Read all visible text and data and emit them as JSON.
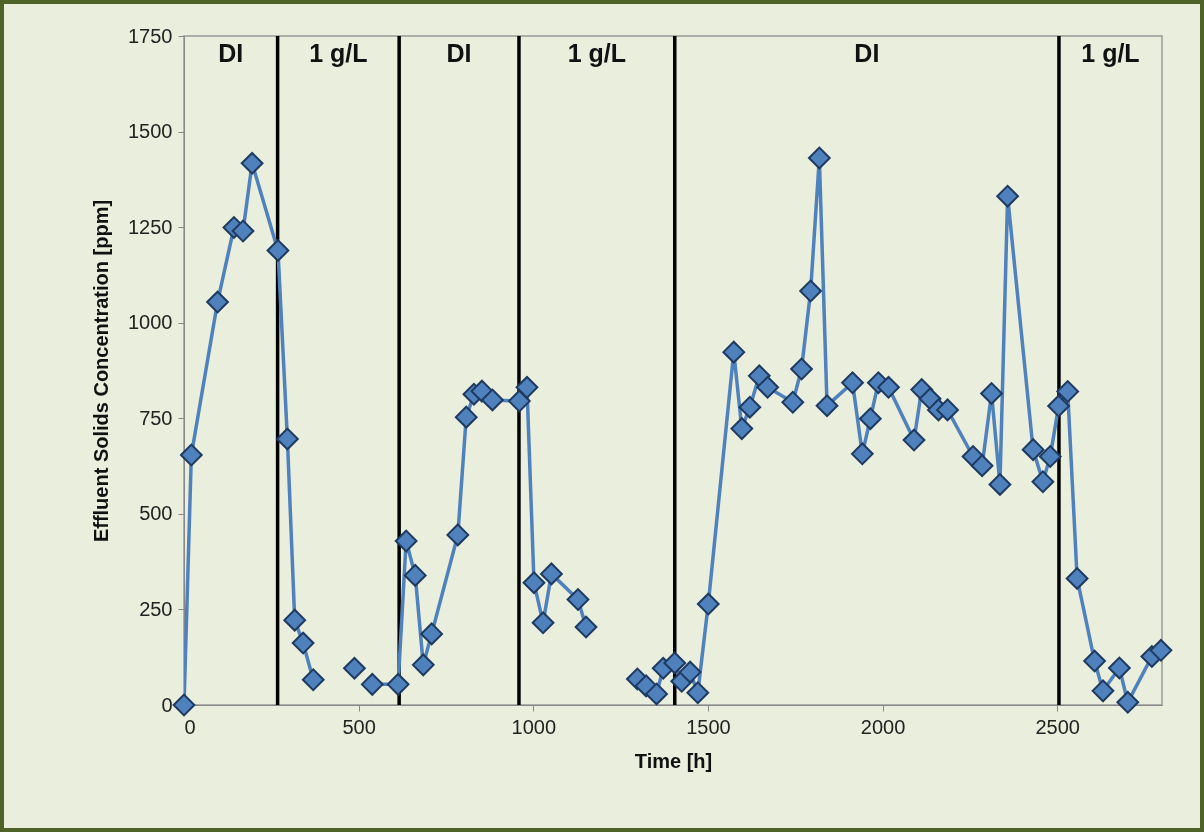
{
  "chart_data": {
    "type": "line",
    "xlabel": "Time [h]",
    "ylabel": "Effluent Solids Concentration  [ppm]",
    "xlim": [
      0,
      2800
    ],
    "xticks": [
      0,
      500,
      1000,
      1500,
      2000,
      2500
    ],
    "ylim": [
      0,
      1750
    ],
    "yticks": [
      0,
      250,
      500,
      750,
      1000,
      1250,
      1500,
      1750
    ],
    "grid": false,
    "marker": "diamond",
    "line_style": "solid",
    "series": [
      {
        "color": "#4f81bd",
        "x": [
          0,
          21,
          96,
          143,
          169,
          195,
          269,
          296,
          317,
          341,
          370,
          430,
          488,
          505,
          539,
          613,
          636,
          662,
          685,
          709,
          784,
          808,
          830,
          853,
          883,
          960,
          982,
          1002,
          1028,
          1052,
          1128,
          1151,
          1220,
          1298,
          1323,
          1353,
          1372,
          1405,
          1425,
          1449,
          1471,
          1501,
          1574,
          1597,
          1620,
          1647,
          1671,
          1743,
          1768,
          1794,
          1819,
          1841,
          1914,
          1942,
          1965,
          1988,
          2017,
          2090,
          2112,
          2136,
          2160,
          2186,
          2259,
          2285,
          2312,
          2336,
          2358,
          2431,
          2459,
          2480,
          2504,
          2530,
          2557,
          2607,
          2631,
          2678,
          2702,
          2771,
          2797
        ],
        "values": [
          0,
          654,
          1054,
          1249,
          1240,
          1417,
          1189,
          696,
          222,
          162,
          66,
          null,
          96,
          null,
          54,
          54,
          429,
          339,
          105,
          186,
          445,
          753,
          813,
          821,
          798,
          795,
          831,
          320,
          215,
          343,
          276,
          204,
          null,
          68,
          50,
          29,
          96,
          110,
          62,
          86,
          32,
          264,
          923,
          723,
          779,
          861,
          831,
          792,
          879,
          1083,
          1431,
          783,
          843,
          657,
          749,
          843,
          831,
          693,
          825,
          801,
          772,
          772,
          650,
          626,
          815,
          577,
          1331,
          668,
          584,
          650,
          782,
          820,
          331,
          115,
          37,
          97,
          7,
          127,
          143
        ]
      }
    ],
    "ref_lines": [
      {
        "axis": "x",
        "value": 268,
        "color": "#000000"
      },
      {
        "axis": "x",
        "value": 616,
        "color": "#000000"
      },
      {
        "axis": "x",
        "value": 959,
        "color": "#000000"
      },
      {
        "axis": "x",
        "value": 1405,
        "color": "#000000"
      },
      {
        "axis": "x",
        "value": 2505,
        "color": "#000000"
      }
    ],
    "annotations": [
      "DI",
      "1 g/L",
      "DI",
      "1 g/L",
      "DI",
      "1 g/L"
    ]
  }
}
